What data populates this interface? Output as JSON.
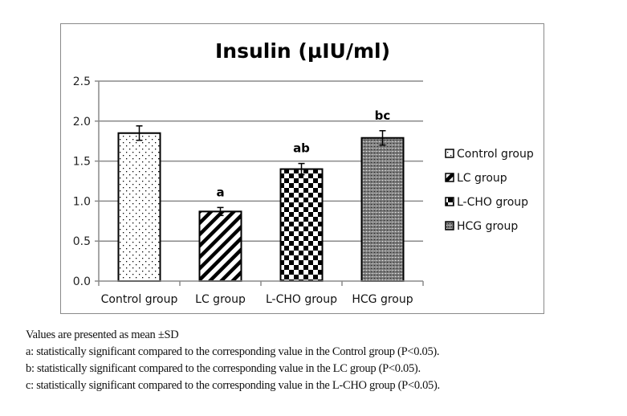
{
  "chart_data": {
    "type": "bar",
    "title": "Insulin (µIU/ml)",
    "xlabel": "",
    "ylabel": "",
    "ylim": [
      0,
      2.5
    ],
    "yticks": [
      0.0,
      0.5,
      1.0,
      1.5,
      2.0,
      2.5
    ],
    "ytick_labels": [
      "0.0",
      "0.5",
      "1.0",
      "1.5",
      "2.0",
      "2.5"
    ],
    "grid": true,
    "legend_position": "right",
    "categories": [
      "Control group",
      "LC group",
      "L-CHO group",
      "HCG group"
    ],
    "values": [
      1.85,
      0.87,
      1.4,
      1.79
    ],
    "error": [
      0.09,
      0.05,
      0.07,
      0.09
    ],
    "annotations": [
      "",
      "a",
      "ab",
      "bc"
    ],
    "patterns": [
      "dots",
      "diagonal-stripes",
      "checkerboard",
      "dense-grid"
    ],
    "legend": [
      "Control group",
      "LC group",
      "L-CHO group",
      "HCG group"
    ]
  },
  "notes": [
    "Values are presented as mean ±SD",
    "a: statistically significant compared to the corresponding value in the Control group (P<0.05).",
    "b: statistically significant compared to the corresponding value in the LC group (P<0.05).",
    "c: statistically significant compared to the corresponding value in the L-CHO group (P<0.05)."
  ],
  "colors": {
    "grid": "#8a8a8a",
    "bar_outline": "#000000",
    "text": "#000000"
  }
}
